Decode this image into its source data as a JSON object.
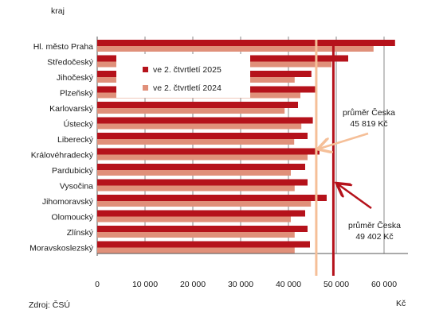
{
  "chart_data": {
    "type": "bar",
    "orientation": "horizontal",
    "ylabel": "kraj",
    "xlabel": "Kč",
    "source": "Zdroj: ČSÚ",
    "categories": [
      "Hl. město Praha",
      "Středočeský",
      "Jihočeský",
      "Plzeňský",
      "Karlovarský",
      "Ústecký",
      "Liberecký",
      "Královéhradecký",
      "Pardubický",
      "Vysočina",
      "Jihomoravský",
      "Olomoucký",
      "Zlínský",
      "Moravskoslezský"
    ],
    "series": [
      {
        "name": "ve 2. čtvrtletí 2025",
        "color": "#b5121b",
        "values": [
          62300,
          52500,
          44800,
          45700,
          42000,
          45100,
          44000,
          46500,
          43500,
          44000,
          48000,
          43500,
          44000,
          44500
        ]
      },
      {
        "name": "ve 2. čtvrtletí 2024",
        "color": "#e0907a",
        "values": [
          57800,
          49000,
          41300,
          42500,
          39200,
          42700,
          41200,
          44000,
          40500,
          41300,
          44700,
          40500,
          41300,
          41300
        ]
      }
    ],
    "xlim": [
      0,
      65000
    ],
    "xticks": [
      0,
      10000,
      20000,
      30000,
      40000,
      50000,
      60000
    ],
    "xtick_labels": [
      "0",
      "10 000",
      "20 000",
      "30 000",
      "40 000",
      "50 000",
      "60 000"
    ],
    "grid": true,
    "legend_position": "top-center",
    "reference_lines": [
      {
        "label": "průměr Česka",
        "value_label": "45 819 Kč",
        "value": 45819,
        "color": "#f5bf98"
      },
      {
        "label": "průměr Česka",
        "value_label": "49 402 Kč",
        "value": 49402,
        "color": "#b5121b"
      }
    ]
  }
}
